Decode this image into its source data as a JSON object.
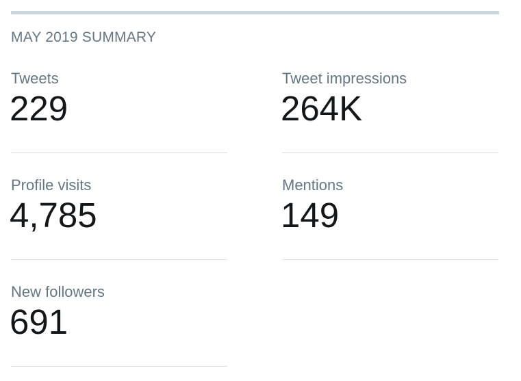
{
  "summary": {
    "title": "MAY 2019 SUMMARY",
    "metrics": [
      {
        "label": "Tweets",
        "value": "229"
      },
      {
        "label": "Tweet impressions",
        "value": "264K"
      },
      {
        "label": "Profile visits",
        "value": "4,785"
      },
      {
        "label": "Mentions",
        "value": "149"
      },
      {
        "label": "New followers",
        "value": "691"
      }
    ]
  },
  "colors": {
    "rule": "#ccd6dd",
    "label": "#657786",
    "value": "#14171a",
    "divider": "#d9dfe4"
  }
}
